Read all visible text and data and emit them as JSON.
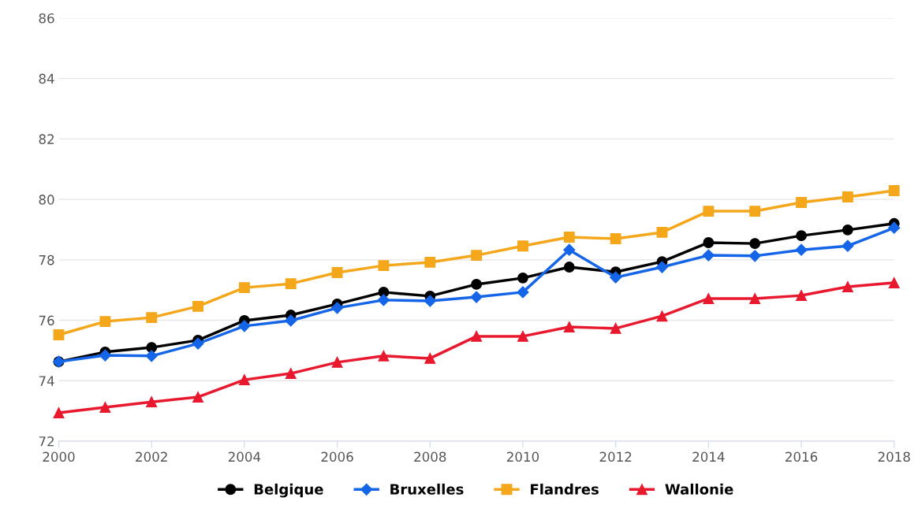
{
  "chart_data": {
    "type": "line",
    "x": [
      2000,
      2001,
      2002,
      2003,
      2004,
      2005,
      2006,
      2007,
      2008,
      2009,
      2010,
      2011,
      2012,
      2013,
      2014,
      2015,
      2016,
      2017,
      2018
    ],
    "series": [
      {
        "name": "Belgique",
        "color": "#000000",
        "marker": "circle",
        "values": [
          74.63,
          74.95,
          75.1,
          75.34,
          75.99,
          76.17,
          76.54,
          76.93,
          76.8,
          77.19,
          77.4,
          77.76,
          77.6,
          77.94,
          78.57,
          78.54,
          78.8,
          78.99,
          79.2
        ]
      },
      {
        "name": "Bruxelles",
        "color": "#1565e8",
        "marker": "diamond",
        "values": [
          74.63,
          74.84,
          74.82,
          75.23,
          75.81,
          75.99,
          76.41,
          76.67,
          76.64,
          76.77,
          76.93,
          78.33,
          77.42,
          77.76,
          78.15,
          78.13,
          78.33,
          78.46,
          79.06
        ]
      },
      {
        "name": "Flandres",
        "color": "#f5a71c",
        "marker": "square",
        "values": [
          75.52,
          75.96,
          76.09,
          76.46,
          77.08,
          77.21,
          77.58,
          77.81,
          77.92,
          78.15,
          78.46,
          78.75,
          78.7,
          78.91,
          79.61,
          79.61,
          79.9,
          80.08,
          80.29
        ]
      },
      {
        "name": "Wallonie",
        "color": "#e8192e",
        "marker": "triangle",
        "values": [
          72.94,
          73.12,
          73.3,
          73.46,
          74.03,
          74.24,
          74.61,
          74.82,
          74.74,
          75.47,
          75.47,
          75.78,
          75.73,
          76.14,
          76.72,
          76.72,
          76.82,
          77.11,
          77.24
        ]
      }
    ],
    "xlim": [
      2000,
      2018
    ],
    "xticks": [
      2000,
      2002,
      2004,
      2006,
      2008,
      2010,
      2012,
      2014,
      2016,
      2018
    ],
    "ylim": [
      72,
      86
    ],
    "yticks": [
      72,
      74,
      76,
      78,
      80,
      82,
      84,
      86
    ],
    "grid": "y",
    "legend": "bottom",
    "line_style": "solid"
  }
}
